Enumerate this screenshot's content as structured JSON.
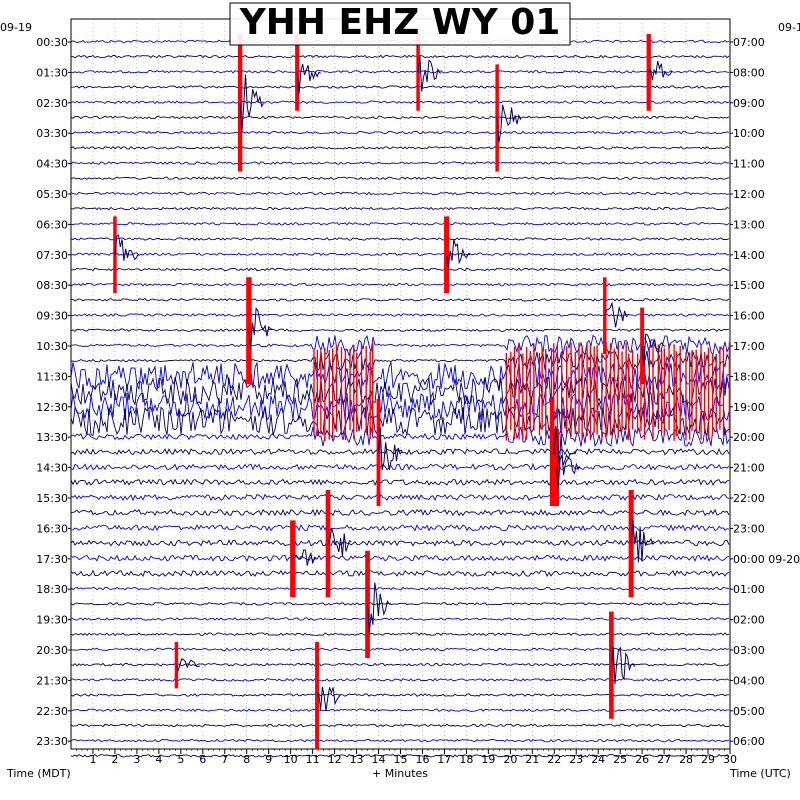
{
  "chart_data": {
    "type": "line",
    "title": "YHH EHZ WY 01",
    "left_date": "09-19",
    "right_date_top": "09-1",
    "right_date_change": "09-20",
    "xlabel": "+ Minutes",
    "left_axis_label": "Time (MDT)",
    "right_axis_label": "Time (UTC)",
    "x_ticks": [
      "1",
      "2",
      "3",
      "4",
      "5",
      "6",
      "7",
      "8",
      "9",
      "10",
      "11",
      "12",
      "13",
      "14",
      "15",
      "16",
      "17",
      "18",
      "19",
      "20",
      "21",
      "22",
      "23",
      "24",
      "25",
      "26",
      "27",
      "28",
      "29",
      "30"
    ],
    "xlim": [
      0,
      30
    ],
    "rows": [
      {
        "mdt": "00:30",
        "utc": "07:00"
      },
      {
        "mdt": "01:30",
        "utc": "08:00"
      },
      {
        "mdt": "02:30",
        "utc": "09:00"
      },
      {
        "mdt": "03:30",
        "utc": "10:00"
      },
      {
        "mdt": "04:30",
        "utc": "11:00"
      },
      {
        "mdt": "05:30",
        "utc": "12:00"
      },
      {
        "mdt": "06:30",
        "utc": "13:00"
      },
      {
        "mdt": "07:30",
        "utc": "14:00"
      },
      {
        "mdt": "08:30",
        "utc": "15:00"
      },
      {
        "mdt": "09:30",
        "utc": "16:00"
      },
      {
        "mdt": "10:30",
        "utc": "17:00"
      },
      {
        "mdt": "11:30",
        "utc": "18:00"
      },
      {
        "mdt": "12:30",
        "utc": "19:00"
      },
      {
        "mdt": "13:30",
        "utc": "20:00"
      },
      {
        "mdt": "14:30",
        "utc": "21:00"
      },
      {
        "mdt": "15:30",
        "utc": "22:00"
      },
      {
        "mdt": "16:30",
        "utc": "23:00"
      },
      {
        "mdt": "17:30",
        "utc": "00:00"
      },
      {
        "mdt": "18:30",
        "utc": "01:00"
      },
      {
        "mdt": "19:30",
        "utc": "02:00"
      },
      {
        "mdt": "20:30",
        "utc": "03:00"
      },
      {
        "mdt": "21:30",
        "utc": "04:00"
      },
      {
        "mdt": "22:30",
        "utc": "05:00"
      },
      {
        "mdt": "23:30",
        "utc": "06:00"
      }
    ],
    "trace_colors": [
      "#0000ee",
      "#000066"
    ],
    "clip_color": "#ff0000",
    "grid": true,
    "events": [
      {
        "x": 8.1,
        "row_from": 8,
        "row_to": 11,
        "amp": 1.0
      },
      {
        "x": 10.1,
        "row_from": 16,
        "row_to": 18,
        "amp": 1.0
      },
      {
        "x": 17.1,
        "row_from": 6,
        "row_to": 8,
        "amp": 0.9
      },
      {
        "x": 22.1,
        "row_from": 13,
        "row_to": 15,
        "amp": 0.9
      },
      {
        "x": 25.5,
        "row_from": 15,
        "row_to": 18,
        "amp": 0.9
      },
      {
        "x": 11.7,
        "row_from": 15,
        "row_to": 18,
        "amp": 0.8
      },
      {
        "x": 13.5,
        "row_from": 17,
        "row_to": 20,
        "amp": 0.8
      },
      {
        "x": 24.6,
        "row_from": 19,
        "row_to": 22,
        "amp": 0.8
      },
      {
        "x": 10.3,
        "row_from": 0,
        "row_to": 2,
        "amp": 0.7
      },
      {
        "x": 7.7,
        "row_from": 0,
        "row_to": 4,
        "amp": 0.7
      },
      {
        "x": 26.3,
        "row_from": 0,
        "row_to": 2,
        "amp": 0.7
      },
      {
        "x": 21.9,
        "row_from": 12,
        "row_to": 15,
        "amp": 0.7
      },
      {
        "x": 11.2,
        "row_from": 20,
        "row_to": 23,
        "amp": 0.6
      },
      {
        "x": 26.0,
        "row_from": 9,
        "row_to": 11,
        "amp": 0.6
      },
      {
        "x": 14.0,
        "row_from": 12,
        "row_to": 15,
        "amp": 0.6
      },
      {
        "x": 4.8,
        "row_from": 20,
        "row_to": 21,
        "amp": 0.5
      },
      {
        "x": 15.8,
        "row_from": 0,
        "row_to": 2,
        "amp": 0.5
      },
      {
        "x": 24.3,
        "row_from": 8,
        "row_to": 10,
        "amp": 0.5
      },
      {
        "x": 2.0,
        "row_from": 6,
        "row_to": 8,
        "amp": 0.5
      },
      {
        "x": 19.4,
        "row_from": 1,
        "row_to": 4,
        "amp": 0.5
      }
    ],
    "noisy_rows": [
      11,
      12
    ],
    "swarm": [
      {
        "x_from": 11.0,
        "x_to": 13.8,
        "row_from": 10,
        "row_to": 13
      },
      {
        "x_from": 19.8,
        "x_to": 30.0,
        "row_from": 10,
        "row_to": 13
      }
    ]
  }
}
